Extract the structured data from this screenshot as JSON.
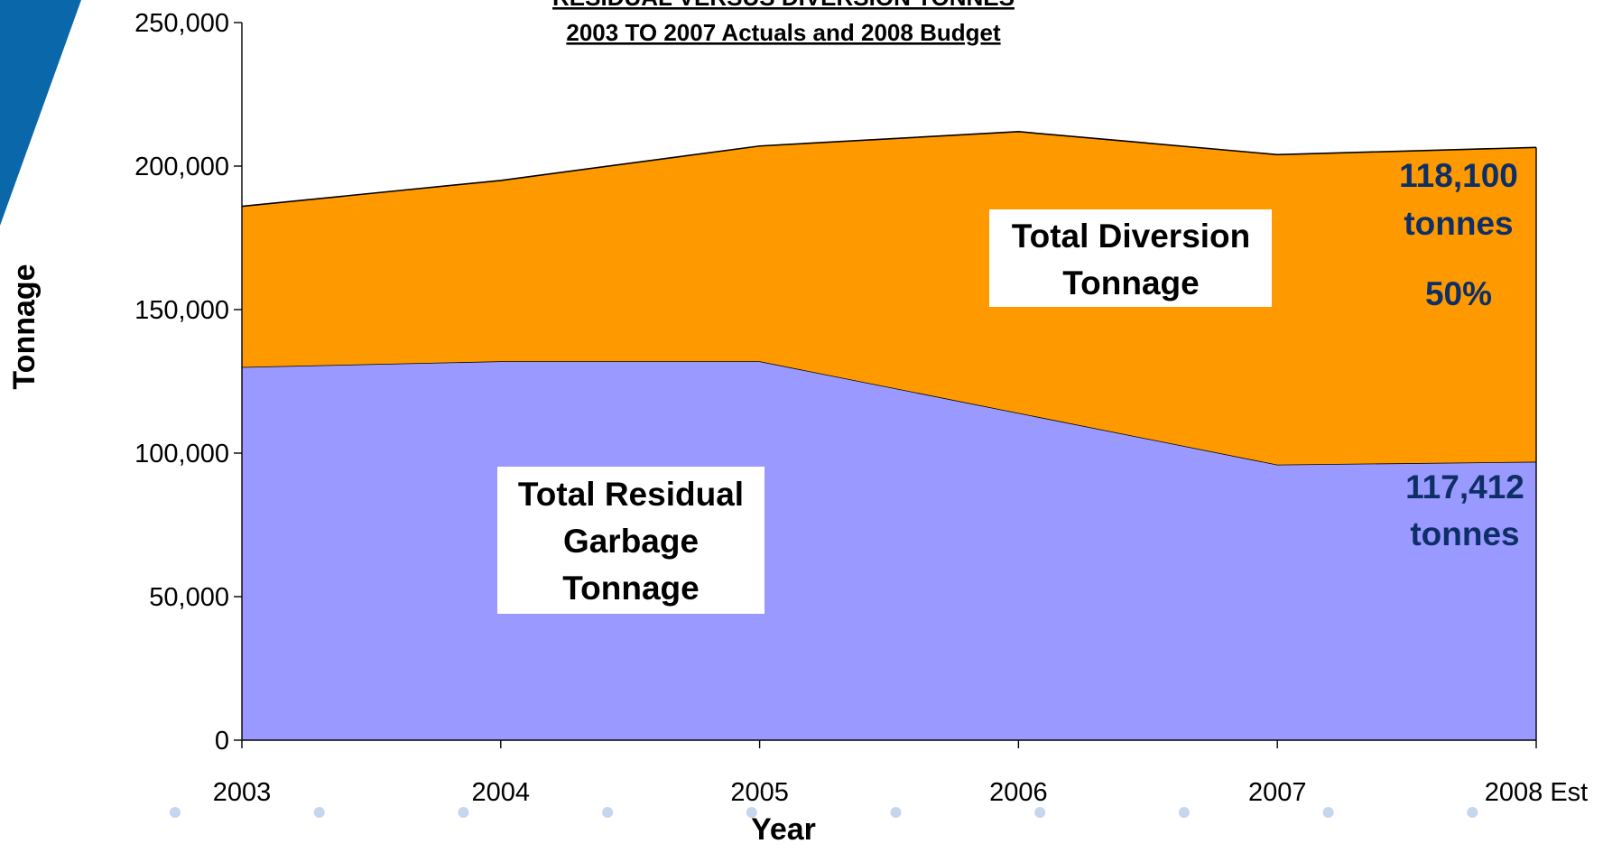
{
  "chart_data": {
    "type": "area",
    "title": "RESIDUAL VERSUS DIVERSION TONNES",
    "subtitle": "2003 TO 2007 Actuals and 2008 Budget",
    "xlabel": "Year",
    "ylabel": "Tonnage",
    "categories": [
      "2003",
      "2004",
      "2005",
      "2006",
      "2007",
      "2008 Est"
    ],
    "y_ticks": [
      "0",
      "50,000",
      "100,000",
      "150,000",
      "200,000",
      "250,000"
    ],
    "ylim": [
      0,
      250000
    ],
    "stacked": true,
    "series": [
      {
        "name": "Total Residual Garbage Tonnage",
        "values": [
          130000,
          132000,
          132000,
          114000,
          96000,
          97000
        ],
        "color": "#9999ff"
      },
      {
        "name": "Total Diversion Tonnage",
        "values": [
          56000,
          63000,
          75000,
          98000,
          108000,
          109500
        ],
        "color": "#ff9900"
      }
    ],
    "labels": {
      "residual_box": [
        "Total Residual",
        "Garbage",
        "Tonnage"
      ],
      "diversion_box": [
        "Total Diversion",
        "Tonnage"
      ],
      "diversion_note": [
        "118,100",
        "tonnes",
        "50%"
      ],
      "residual_note": [
        "117,412",
        "tonnes"
      ]
    },
    "grid": false,
    "legend": "none"
  },
  "colors": {
    "decor_blue": "#0a67aa",
    "dot": "#c6d5f0",
    "note_text": "#0d2f66"
  }
}
